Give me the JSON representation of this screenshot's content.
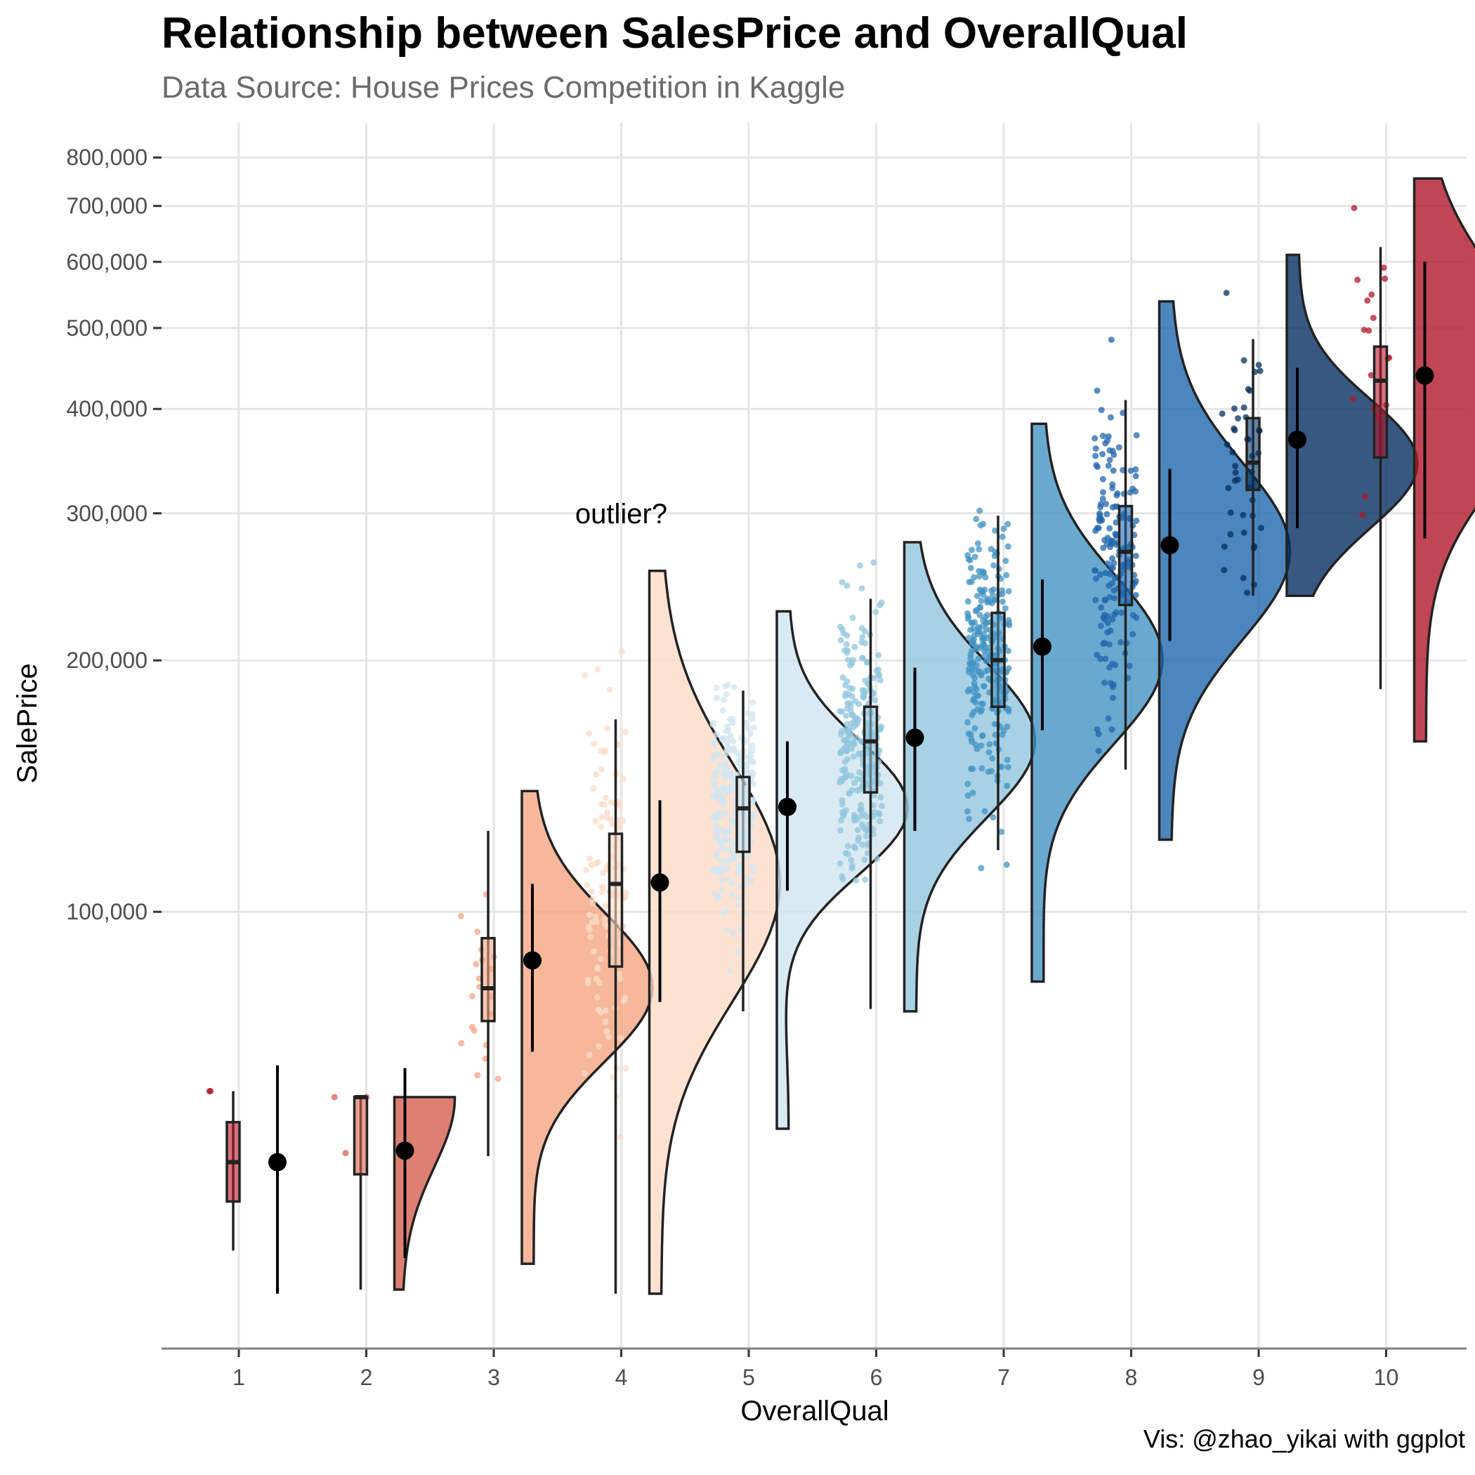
{
  "chart_data": {
    "type": "raincloud",
    "title": "Relationship between SalesPrice and OverallQual",
    "subtitle": "Data Source: House Prices Competition in Kaggle",
    "caption": "Vis: @zhao_yikai with ggplot",
    "xlabel": "OverallQual",
    "ylabel": "SalePrice",
    "y_scale": "log",
    "ylim": [
      30000,
      880000
    ],
    "y_ticks": [
      100000,
      200000,
      300000,
      400000,
      500000,
      600000,
      700000,
      800000
    ],
    "y_tick_labels": [
      "100,000",
      "200,000",
      "300,000",
      "400,000",
      "500,000",
      "600,000",
      "700,000",
      "800,000"
    ],
    "categories": [
      "1",
      "2",
      "3",
      "4",
      "5",
      "6",
      "7",
      "8",
      "9",
      "10"
    ],
    "grid": true,
    "groups": [
      {
        "x": "1",
        "color": "#b2182b",
        "n": 2,
        "median": 50150,
        "q1": 45000,
        "q3": 56000,
        "min": 39300,
        "max": 61000,
        "mean": 50150,
        "mean_ci": [
          34900,
          65500
        ],
        "violin_min": null,
        "violin_max": null
      },
      {
        "x": "2",
        "color": "#d6604d",
        "n": 3,
        "median": 60000,
        "q1": 48500,
        "q3": 60000,
        "min": 35300,
        "max": 60000,
        "mean": 51770,
        "mean_ci": [
          38500,
          65000
        ],
        "violin_min": 35300,
        "violin_max": 60000
      },
      {
        "x": "3",
        "color": "#f4a582",
        "n": 20,
        "median": 81000,
        "q1": 74000,
        "q3": 93000,
        "min": 51000,
        "max": 125000,
        "mean": 87470,
        "mean_ci": [
          68000,
          108000
        ],
        "violin_min": 37900,
        "violin_max": 139500
      },
      {
        "x": "4",
        "color": "#fddbc7",
        "n": 116,
        "median": 108000,
        "q1": 86000,
        "q3": 124000,
        "min": 34900,
        "max": 170000,
        "mean": 108420,
        "mean_ci": [
          78000,
          136000
        ],
        "violin_min": 34900,
        "violin_max": 256000
      },
      {
        "x": "5",
        "color": "#d1e5f0",
        "n": 397,
        "median": 133000,
        "q1": 118000,
        "q3": 145000,
        "min": 76000,
        "max": 184000,
        "mean": 133520,
        "mean_ci": [
          106000,
          160000
        ],
        "violin_min": 55000,
        "violin_max": 228950
      },
      {
        "x": "6",
        "color": "#92c5de",
        "n": 374,
        "median": 160000,
        "q1": 139000,
        "q3": 176000,
        "min": 76500,
        "max": 237000,
        "mean": 161600,
        "mean_ci": [
          125000,
          196000
        ],
        "violin_min": 76000,
        "violin_max": 277000
      },
      {
        "x": "7",
        "color": "#4393c3",
        "n": 319,
        "median": 200141,
        "q1": 176000,
        "q3": 228000,
        "min": 118500,
        "max": 298000,
        "mean": 207720,
        "mean_ci": [
          165000,
          250000
        ],
        "violin_min": 82500,
        "violin_max": 383970
      },
      {
        "x": "8",
        "color": "#2166ac",
        "n": 168,
        "median": 269750,
        "q1": 233000,
        "q3": 306000,
        "min": 148000,
        "max": 410000,
        "mean": 274740,
        "mean_ci": [
          211000,
          339000
        ],
        "violin_min": 122000,
        "violin_max": 538000
      },
      {
        "x": "9",
        "color": "#053061",
        "n": 43,
        "median": 345000,
        "q1": 320000,
        "q3": 390000,
        "min": 239000,
        "max": 485000,
        "mean": 367510,
        "mean_ci": [
          288000,
          448000
        ],
        "violin_min": 239000,
        "violin_max": 611657
      },
      {
        "x": "10",
        "color": "#b2182b",
        "n": 18,
        "median": 432390,
        "q1": 350000,
        "q3": 475000,
        "min": 184750,
        "max": 625000,
        "mean": 438590,
        "mean_ci": [
          280000,
          600000
        ],
        "violin_min": 160000,
        "violin_max": 755000
      }
    ],
    "annotations": [
      {
        "text": "outlier?",
        "x": "4",
        "y": 300000
      }
    ]
  },
  "palette": {
    "grid": "#e5e5e5",
    "axis": "#808080",
    "mean_point": "#000000",
    "box_outline": "#222222"
  }
}
